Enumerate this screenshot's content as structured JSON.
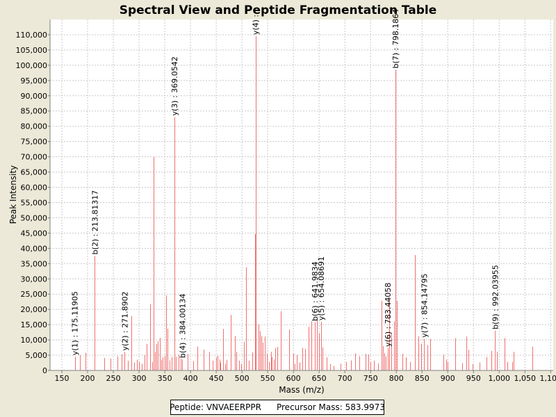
{
  "chart_data": {
    "type": "bar",
    "title": "Spectral View and Peptide Fragmentation Table",
    "xlabel": "Mass (m/z)",
    "ylabel": "Peak Intensity",
    "xlim": [
      127,
      1105
    ],
    "ylim": [
      0,
      115000
    ],
    "xticks": [
      150,
      200,
      250,
      300,
      350,
      400,
      450,
      500,
      550,
      600,
      650,
      700,
      750,
      800,
      850,
      900,
      950,
      1000,
      1050,
      1100
    ],
    "xtick_labels": [
      "150",
      "200",
      "250",
      "300",
      "350",
      "400",
      "450",
      "500",
      "550",
      "600",
      "650",
      "700",
      "750",
      "800",
      "850",
      "900",
      "950",
      "1,000",
      "1,050",
      "1,100"
    ],
    "yticks": [
      0,
      5000,
      10000,
      15000,
      20000,
      25000,
      30000,
      35000,
      40000,
      45000,
      50000,
      55000,
      60000,
      65000,
      70000,
      75000,
      80000,
      85000,
      90000,
      95000,
      100000,
      105000,
      110000
    ],
    "ytick_labels": [
      "0",
      "5,000",
      "10,000",
      "15,000",
      "20,000",
      "25,000",
      "30,000",
      "35,000",
      "40,000",
      "45,000",
      "50,000",
      "55,000",
      "60,000",
      "65,000",
      "70,000",
      "75,000",
      "80,000",
      "85,000",
      "90,000",
      "95,000",
      "100,000",
      "105,000",
      "110,000"
    ],
    "grid": true,
    "peak_color": "#F07070",
    "peaks": [
      [
        175.1,
        4500
      ],
      [
        185,
        5000
      ],
      [
        196,
        5800
      ],
      [
        213.8,
        37500
      ],
      [
        232,
        4100
      ],
      [
        244,
        3900
      ],
      [
        258,
        4600
      ],
      [
        266,
        5300
      ],
      [
        272,
        6000
      ],
      [
        278,
        3200
      ],
      [
        285,
        17800
      ],
      [
        290,
        2600
      ],
      [
        296,
        3500
      ],
      [
        300,
        2800
      ],
      [
        305,
        2200
      ],
      [
        311,
        5100
      ],
      [
        315,
        8700
      ],
      [
        321,
        21800
      ],
      [
        325,
        2800
      ],
      [
        328,
        70000
      ],
      [
        331,
        6100
      ],
      [
        334,
        8600
      ],
      [
        337,
        9600
      ],
      [
        340,
        10700
      ],
      [
        343,
        3500
      ],
      [
        346,
        4300
      ],
      [
        350,
        4600
      ],
      [
        352,
        24600
      ],
      [
        355,
        13700
      ],
      [
        360,
        3300
      ],
      [
        364,
        4400
      ],
      [
        369,
        83000
      ],
      [
        372,
        4500
      ],
      [
        377,
        5300
      ],
      [
        381,
        3900
      ],
      [
        384,
        3600
      ],
      [
        394,
        5300
      ],
      [
        405,
        3100
      ],
      [
        414,
        7800
      ],
      [
        425,
        6800
      ],
      [
        436,
        6100
      ],
      [
        443,
        3200
      ],
      [
        450,
        4300
      ],
      [
        453,
        4800
      ],
      [
        456,
        3600
      ],
      [
        458,
        2600
      ],
      [
        464,
        13600
      ],
      [
        467,
        2200
      ],
      [
        470,
        3500
      ],
      [
        478,
        18200
      ],
      [
        486,
        11300
      ],
      [
        489,
        6100
      ],
      [
        494,
        3200
      ],
      [
        499,
        2100
      ],
      [
        504,
        9400
      ],
      [
        508,
        33800
      ],
      [
        514,
        3200
      ],
      [
        520,
        5900
      ],
      [
        525,
        44700
      ],
      [
        526.5,
        109500
      ],
      [
        532,
        15100
      ],
      [
        535,
        12800
      ],
      [
        538,
        11300
      ],
      [
        541,
        9100
      ],
      [
        544,
        11100
      ],
      [
        548,
        5400
      ],
      [
        552,
        2800
      ],
      [
        556,
        6100
      ],
      [
        558,
        4400
      ],
      [
        562,
        3600
      ],
      [
        565,
        7300
      ],
      [
        569,
        7700
      ],
      [
        576,
        19400
      ],
      [
        592,
        13400
      ],
      [
        600,
        5600
      ],
      [
        603,
        2200
      ],
      [
        606,
        5100
      ],
      [
        612,
        2600
      ],
      [
        617,
        7400
      ],
      [
        623,
        7100
      ],
      [
        630,
        14300
      ],
      [
        635,
        16100
      ],
      [
        641.9,
        15700
      ],
      [
        646,
        16800
      ],
      [
        650,
        12200
      ],
      [
        654.1,
        15900
      ],
      [
        657,
        7600
      ],
      [
        665,
        4300
      ],
      [
        672,
        2100
      ],
      [
        678,
        1500
      ],
      [
        692,
        2200
      ],
      [
        703,
        2800
      ],
      [
        712,
        3300
      ],
      [
        720,
        5600
      ],
      [
        728,
        4600
      ],
      [
        740,
        5400
      ],
      [
        746,
        5200
      ],
      [
        750,
        2800
      ],
      [
        756,
        3200
      ],
      [
        765,
        2300
      ],
      [
        772,
        22800
      ],
      [
        774,
        8000
      ],
      [
        777,
        5600
      ],
      [
        780,
        4600
      ],
      [
        783.4,
        7300
      ],
      [
        786,
        23200
      ],
      [
        790,
        12400
      ],
      [
        795,
        16100
      ],
      [
        798.2,
        98500
      ],
      [
        801,
        22800
      ],
      [
        812,
        5500
      ],
      [
        818,
        4300
      ],
      [
        827,
        2800
      ],
      [
        836,
        37800
      ],
      [
        843,
        11200
      ],
      [
        849,
        8700
      ],
      [
        854.1,
        10300
      ],
      [
        860,
        8300
      ],
      [
        866,
        10400
      ],
      [
        892,
        5100
      ],
      [
        897,
        3500
      ],
      [
        900,
        2800
      ],
      [
        915,
        10600
      ],
      [
        928,
        2400
      ],
      [
        936,
        11100
      ],
      [
        940,
        6800
      ],
      [
        948,
        2100
      ],
      [
        962,
        2600
      ],
      [
        975,
        4400
      ],
      [
        985,
        6400
      ],
      [
        992,
        13000
      ],
      [
        996,
        6100
      ],
      [
        1010,
        10600
      ],
      [
        1016,
        2800
      ],
      [
        1025,
        2800
      ],
      [
        1028,
        6100
      ],
      [
        1064,
        7800
      ]
    ],
    "annotations": [
      {
        "label": "y(1) : 175.11905",
        "x": 175.1,
        "y": 4500
      },
      {
        "label": "b(2) : 213.81317",
        "x": 213.8,
        "y": 37500
      },
      {
        "label": "y(2) : 271.8902",
        "x": 272,
        "y": 6000
      },
      {
        "label": "y(3) : 369.0542",
        "x": 369,
        "y": 83000
      },
      {
        "label": "b(4) : 384.00134",
        "x": 384,
        "y": 3600
      },
      {
        "label": "y(4) :",
        "x": 526.5,
        "y": 109500
      },
      {
        "label": "b(6) : 641.9834",
        "x": 641.9,
        "y": 15700
      },
      {
        "label": "y(5) : 654.08691",
        "x": 654.1,
        "y": 15900
      },
      {
        "label": "y(6) : 783.44058",
        "x": 783.4,
        "y": 7300
      },
      {
        "label": "b(7) : 798.1864",
        "x": 798.2,
        "y": 98500
      },
      {
        "label": "y(7) : 854.14795",
        "x": 854.1,
        "y": 10300
      },
      {
        "label": "b(9) : 992.03955",
        "x": 992,
        "y": 13000
      }
    ]
  },
  "info": {
    "peptide": "Peptide: VNVAEERPPR",
    "precursor": "Precursor Mass: 583.9973"
  }
}
